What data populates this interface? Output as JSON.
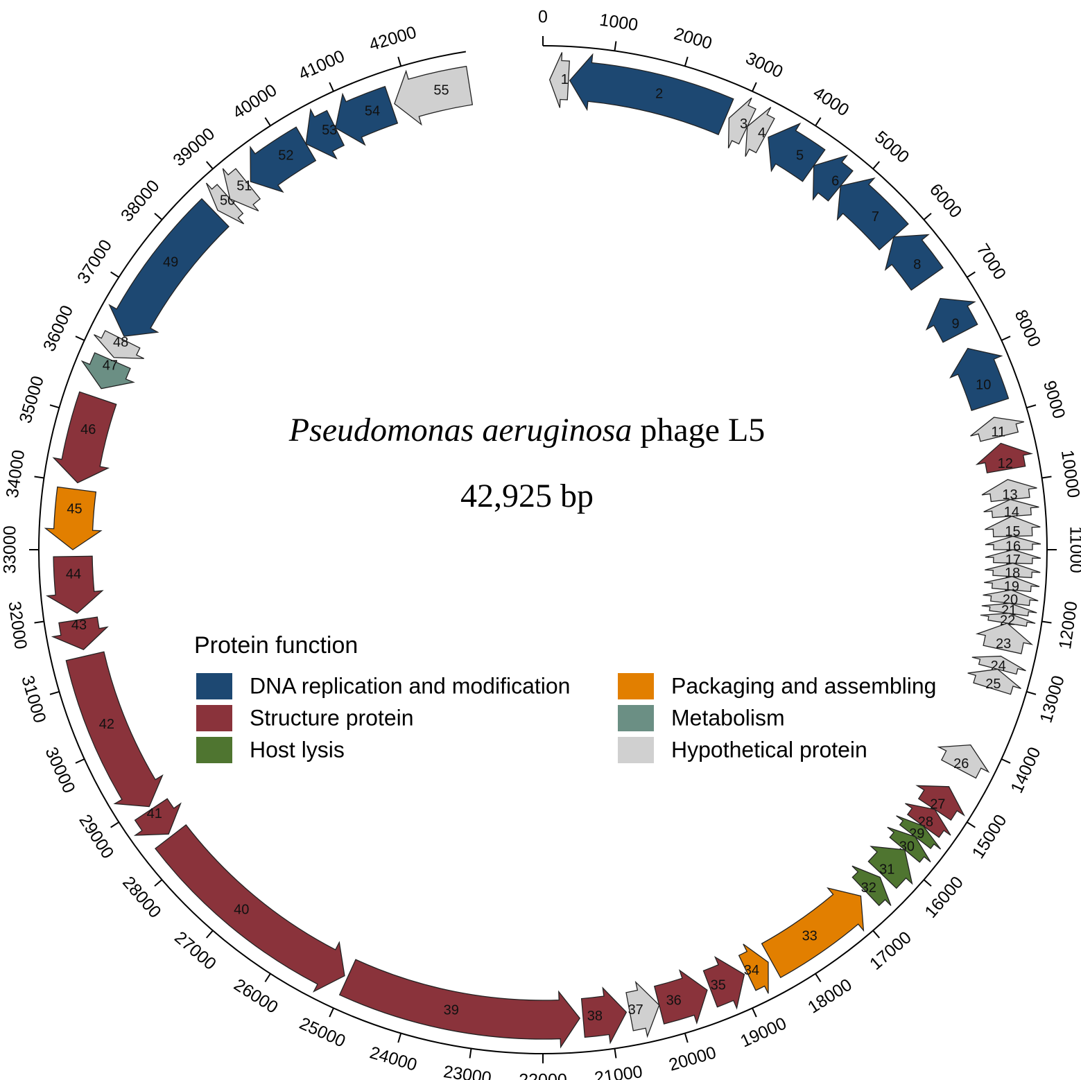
{
  "chart_data": {
    "type": "genome-map",
    "title_italic": "Pseudomonas aeruginosa",
    "title_rest": "phage L5",
    "subtitle": "42,925 bp",
    "genome_length": 42925,
    "xlim": [
      0,
      44000
    ],
    "xticks": [
      0,
      1000,
      2000,
      3000,
      4000,
      5000,
      6000,
      7000,
      8000,
      9000,
      10000,
      11000,
      12000,
      13000,
      14000,
      15000,
      16000,
      17000,
      18000,
      19000,
      20000,
      21000,
      22000,
      23000,
      24000,
      25000,
      26000,
      27000,
      28000,
      29000,
      30000,
      31000,
      32000,
      33000,
      34000,
      35000,
      36000,
      37000,
      38000,
      39000,
      40000,
      41000,
      42000
    ],
    "gene_direction": "reverse",
    "legend_title": "Protein function",
    "series": [
      {
        "name": "DNA replication and modification",
        "color": "#1d4872",
        "genes": [
          {
            "label": "2",
            "start": 400,
            "end": 2800
          },
          {
            "label": "5",
            "start": 3500,
            "end": 4300
          },
          {
            "label": "6",
            "start": 4300,
            "end": 4800
          },
          {
            "label": "7",
            "start": 4800,
            "end": 5900
          },
          {
            "label": "8",
            "start": 5900,
            "end": 6700
          },
          {
            "label": "9",
            "start": 7050,
            "end": 7650
          },
          {
            "label": "10",
            "start": 7900,
            "end": 8800
          },
          {
            "label": "49",
            "start": 36300,
            "end": 38600
          },
          {
            "label": "52",
            "start": 39300,
            "end": 40300
          },
          {
            "label": "53",
            "start": 40300,
            "end": 40800
          },
          {
            "label": "54",
            "start": 40800,
            "end": 41700
          }
        ]
      },
      {
        "name": "Structure protein",
        "color": "#8a333b",
        "genes": [
          {
            "label": "12",
            "start": 9400,
            "end": 9800
          },
          {
            "label": "27",
            "start": 14700,
            "end": 15100
          },
          {
            "label": "28",
            "start": 15100,
            "end": 15400
          },
          {
            "label": "35",
            "start": 18900,
            "end": 19450
          },
          {
            "label": "36",
            "start": 19500,
            "end": 20250
          },
          {
            "label": "38",
            "start": 20750,
            "end": 21400
          },
          {
            "label": "39",
            "start": 21450,
            "end": 25000
          },
          {
            "label": "40",
            "start": 25050,
            "end": 28400
          },
          {
            "label": "41",
            "start": 28450,
            "end": 28900
          },
          {
            "label": "42",
            "start": 28950,
            "end": 31400
          },
          {
            "label": "43",
            "start": 31500,
            "end": 31950
          },
          {
            "label": "44",
            "start": 32050,
            "end": 32900
          },
          {
            "label": "46",
            "start": 34000,
            "end": 35300
          }
        ]
      },
      {
        "name": "Host lysis",
        "color": "#4f7530",
        "genes": [
          {
            "label": "29",
            "start": 15400,
            "end": 15600
          },
          {
            "label": "30",
            "start": 15600,
            "end": 15850
          },
          {
            "label": "31",
            "start": 15850,
            "end": 16350
          },
          {
            "label": "32",
            "start": 16400,
            "end": 16700
          }
        ]
      },
      {
        "name": "Packaging and assembling",
        "color": "#e27f00",
        "genes": [
          {
            "label": "33",
            "start": 16800,
            "end": 18450
          },
          {
            "label": "34",
            "start": 18500,
            "end": 18850
          },
          {
            "label": "45",
            "start": 33000,
            "end": 33900
          }
        ]
      },
      {
        "name": "Metabolism",
        "color": "#6b8f84",
        "genes": [
          {
            "label": "47",
            "start": 35450,
            "end": 35900
          }
        ]
      },
      {
        "name": "Hypothetical protein",
        "color": "#d0d0d0",
        "genes": [
          {
            "label": "1",
            "start": 100,
            "end": 380
          },
          {
            "label": "3",
            "start": 2850,
            "end": 3150
          },
          {
            "label": "4",
            "start": 3150,
            "end": 3450
          },
          {
            "label": "11",
            "start": 9000,
            "end": 9300
          },
          {
            "label": "13",
            "start": 9950,
            "end": 10250
          },
          {
            "label": "14",
            "start": 10250,
            "end": 10500
          },
          {
            "label": "15",
            "start": 10500,
            "end": 10800
          },
          {
            "label": "16",
            "start": 10800,
            "end": 11000
          },
          {
            "label": "17",
            "start": 11000,
            "end": 11200
          },
          {
            "label": "18",
            "start": 11200,
            "end": 11400
          },
          {
            "label": "19",
            "start": 11400,
            "end": 11600
          },
          {
            "label": "20",
            "start": 11600,
            "end": 11800
          },
          {
            "label": "21",
            "start": 11800,
            "end": 11950
          },
          {
            "label": "22",
            "start": 11950,
            "end": 12100
          },
          {
            "label": "23",
            "start": 12100,
            "end": 12500
          },
          {
            "label": "24",
            "start": 12600,
            "end": 12800
          },
          {
            "label": "25",
            "start": 12800,
            "end": 13100
          },
          {
            "label": "26",
            "start": 14000,
            "end": 14400
          },
          {
            "label": "37",
            "start": 20250,
            "end": 20700
          },
          {
            "label": "48",
            "start": 35950,
            "end": 36250
          },
          {
            "label": "50",
            "start": 38650,
            "end": 38900
          },
          {
            "label": "51",
            "start": 38900,
            "end": 39250
          },
          {
            "label": "55",
            "start": 41750,
            "end": 42900
          }
        ]
      }
    ]
  }
}
